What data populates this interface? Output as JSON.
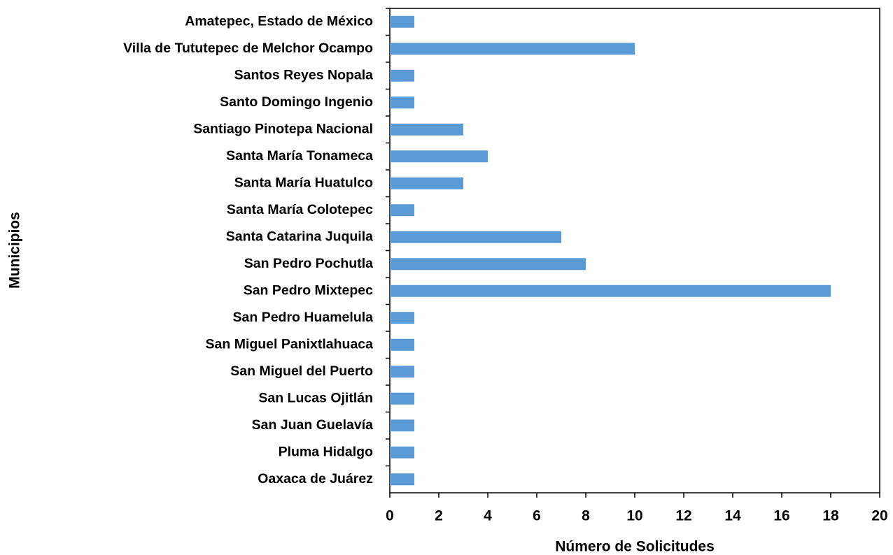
{
  "chart_data": {
    "type": "barh",
    "xlabel": "Número de Solicitudes",
    "ylabel": "Municipios",
    "categories": [
      "Amatepec, Estado de México",
      "Villa de Tututepec de Melchor Ocampo",
      "Santos Reyes Nopala",
      "Santo Domingo Ingenio",
      "Santiago Pinotepa Nacional",
      "Santa María Tonameca",
      "Santa María Huatulco",
      "Santa María Colotepec",
      "Santa Catarina Juquila",
      "San Pedro Pochutla",
      "San Pedro Mixtepec",
      "San Pedro Huamelula",
      "San Miguel Panixtlahuaca",
      "San Miguel del Puerto",
      "San Lucas Ojitlán",
      "San Juan Guelavía",
      "Pluma Hidalgo",
      "Oaxaca de Juárez"
    ],
    "values": [
      1,
      10,
      1,
      1,
      3,
      4,
      3,
      1,
      7,
      8,
      18,
      1,
      1,
      1,
      1,
      1,
      1,
      1
    ],
    "color": "#5b9bd5",
    "xlim": [
      0,
      20
    ],
    "xticks": [
      0,
      2,
      4,
      6,
      8,
      10,
      12,
      14,
      16,
      18,
      20
    ],
    "grid": false
  }
}
